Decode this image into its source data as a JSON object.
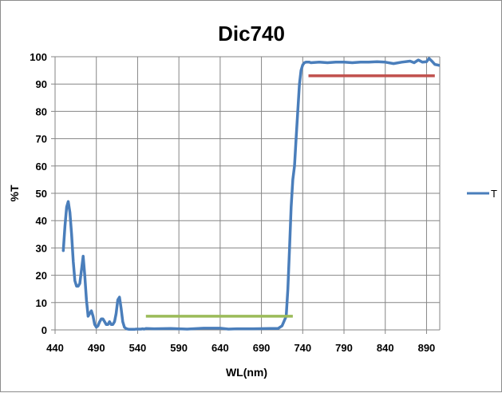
{
  "chart_data": {
    "type": "line",
    "title": "Dic740",
    "xlabel": "WL(nm)",
    "ylabel": "%T",
    "xlim": [
      440,
      906
    ],
    "ylim": [
      0,
      100
    ],
    "x_ticks": [
      440,
      490,
      540,
      590,
      640,
      690,
      740,
      790,
      840,
      890
    ],
    "y_ticks": [
      0,
      10,
      20,
      30,
      40,
      50,
      60,
      70,
      80,
      90,
      100
    ],
    "grid": true,
    "legend_position": "right",
    "series": [
      {
        "name": "T",
        "color": "#4a7ebb",
        "x": [
          450,
          452,
          454,
          456,
          458,
          460,
          462,
          464,
          466,
          468,
          470,
          472,
          474,
          476,
          478,
          480,
          482,
          484,
          486,
          488,
          490,
          492,
          494,
          496,
          498,
          500,
          502,
          504,
          506,
          508,
          510,
          512,
          514,
          516,
          518,
          520,
          522,
          524,
          526,
          528,
          530,
          532,
          534,
          536,
          538,
          540,
          542,
          544,
          546,
          548,
          550,
          560,
          580,
          600,
          620,
          640,
          650,
          660,
          680,
          700,
          710,
          715,
          720,
          722,
          724,
          726,
          728,
          730,
          732,
          734,
          736,
          738,
          740,
          742,
          744,
          746,
          748,
          750,
          760,
          770,
          780,
          790,
          800,
          810,
          820,
          830,
          840,
          850,
          860,
          870,
          875,
          880,
          885,
          890,
          893,
          896,
          900,
          906
        ],
        "y": [
          29,
          38,
          45,
          47,
          43,
          35,
          25,
          18,
          16,
          16,
          17,
          22,
          27,
          20,
          11,
          5,
          6,
          7,
          5,
          2,
          1,
          1.5,
          3,
          4,
          4,
          3,
          2,
          2,
          3,
          2,
          2,
          3,
          6,
          11,
          12,
          8,
          3,
          1,
          0.5,
          0.3,
          0.2,
          0.2,
          0.2,
          0.2,
          0.3,
          0.3,
          0.3,
          0.3,
          0.4,
          0.3,
          0.5,
          0.4,
          0.5,
          0.3,
          0.6,
          0.6,
          0.3,
          0.4,
          0.4,
          0.5,
          0.5,
          1.5,
          5,
          15,
          30,
          45,
          55,
          60,
          70,
          80,
          90,
          95,
          97,
          97.8,
          98,
          98,
          98,
          97.8,
          98,
          97.8,
          98,
          98,
          97.8,
          98,
          98,
          98.2,
          98,
          97.5,
          98,
          98.4,
          97.8,
          98.8,
          98,
          98.2,
          99.4,
          98.5,
          97.2,
          96.8
        ]
      },
      {
        "name": "",
        "color": "#9bbb59",
        "x": [
          550,
          728
        ],
        "y": [
          5,
          5
        ]
      },
      {
        "name": "",
        "color": "#c0504d",
        "x": [
          747,
          900
        ],
        "y": [
          93,
          93
        ]
      }
    ]
  }
}
